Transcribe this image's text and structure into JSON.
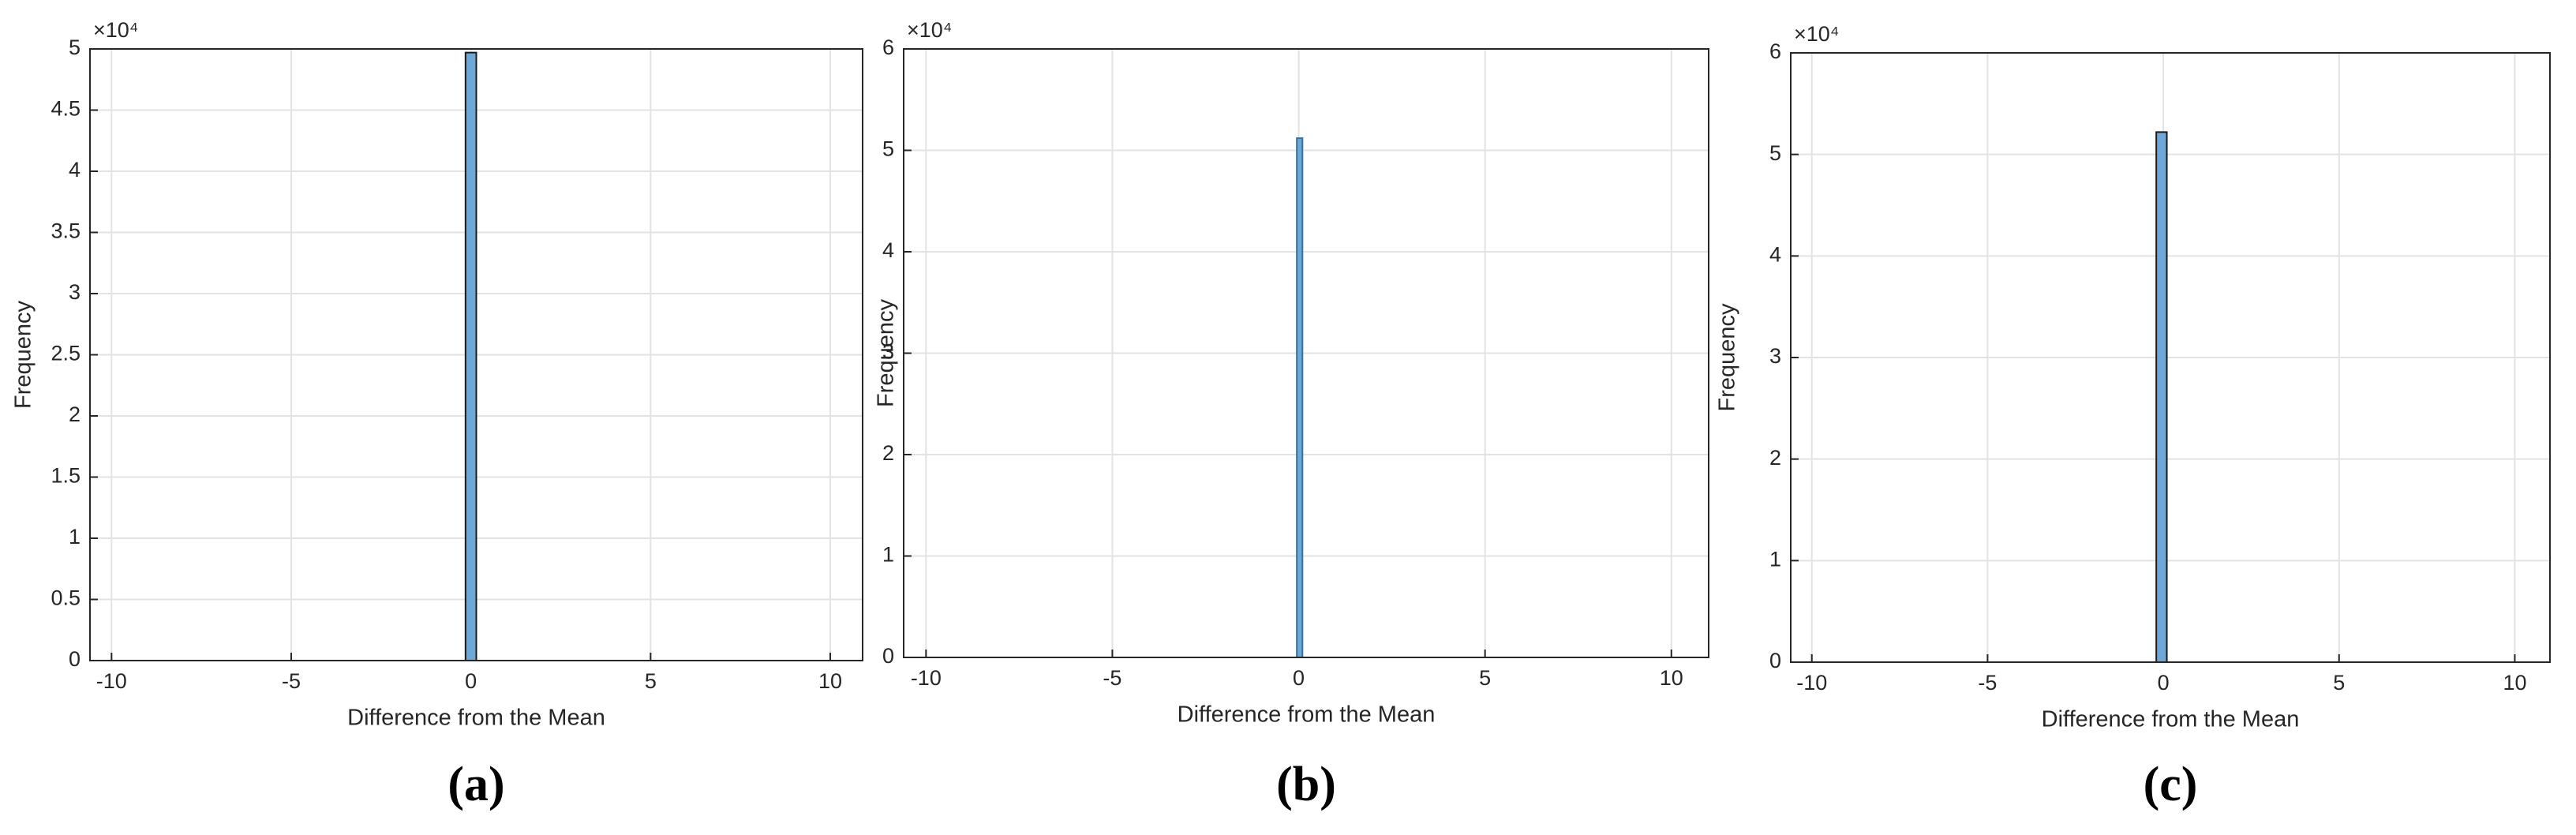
{
  "chart_data": [
    {
      "type": "histogram",
      "label": "(a)",
      "x_label": "Difference from the Mean",
      "y_label": "Frequency",
      "y_multiplier": "×10⁴",
      "bins": [
        -0.15,
        0.15
      ],
      "counts": [
        49700
      ],
      "color": "#6fa8d6",
      "edgecolor": "#1a1a1a",
      "xlim": [
        -10.6,
        10.9
      ],
      "xticks": [
        -10,
        -5,
        0,
        5,
        10
      ],
      "ylim": [
        0,
        50000
      ],
      "yticks": [
        0,
        {
          "value": 5000,
          "label": "0.5"
        },
        {
          "value": 10000,
          "label": "1"
        },
        {
          "value": 15000,
          "label": "1.5"
        },
        {
          "value": 20000,
          "label": "2"
        },
        {
          "value": 25000,
          "label": "2.5"
        },
        {
          "value": 30000,
          "label": "3"
        },
        {
          "value": 35000,
          "label": "3.5"
        },
        {
          "value": 40000,
          "label": "4"
        },
        {
          "value": 45000,
          "label": "4.5"
        },
        {
          "value": 50000,
          "label": "5"
        }
      ],
      "grid": true
    },
    {
      "type": "histogram",
      "label": "(b)",
      "x_label": "Difference from the Mean",
      "y_label": "Frequency",
      "y_multiplier": "×10⁴",
      "bins": [
        -0.05,
        0.1
      ],
      "counts": [
        51200
      ],
      "color": "#6fa8d6",
      "edgecolor": "#3a6f9a",
      "xlim": [
        -10.6,
        11
      ],
      "xticks": [
        -10,
        -5,
        0,
        5,
        10
      ],
      "ylim": [
        0,
        60000
      ],
      "yticks": [
        0,
        {
          "value": 10000,
          "label": "1"
        },
        {
          "value": 20000,
          "label": "2"
        },
        {
          "value": 30000,
          "label": "3"
        },
        {
          "value": 40000,
          "label": "4"
        },
        {
          "value": 50000,
          "label": "5"
        },
        {
          "value": 60000,
          "label": "6"
        }
      ],
      "grid": true
    },
    {
      "type": "histogram",
      "label": "(c)",
      "x_label": "Difference from the Mean",
      "y_label": "Frequency",
      "y_multiplier": "×10⁴",
      "bins": [
        -0.2,
        0.1
      ],
      "counts": [
        52200
      ],
      "color": "#6fa8d6",
      "edgecolor": "#1a1a1a",
      "xlim": [
        -10.6,
        11
      ],
      "xticks": [
        -10,
        -5,
        0,
        5,
        10
      ],
      "ylim": [
        0,
        60000
      ],
      "yticks": [
        0,
        {
          "value": 10000,
          "label": "1"
        },
        {
          "value": 20000,
          "label": "2"
        },
        {
          "value": 30000,
          "label": "3"
        },
        {
          "value": 40000,
          "label": "4"
        },
        {
          "value": 50000,
          "label": "5"
        },
        {
          "value": 60000,
          "label": "6"
        }
      ],
      "grid": true
    }
  ]
}
